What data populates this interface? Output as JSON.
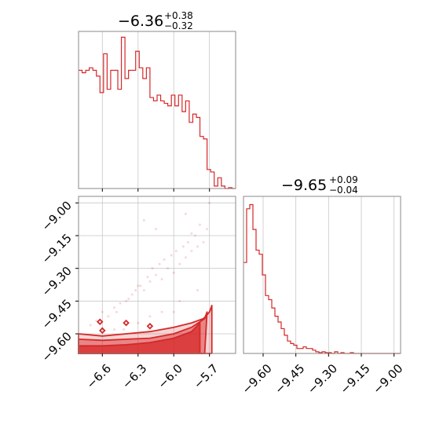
{
  "figure": {
    "accent_color": "#d62728",
    "grid_color": "#c8c8c8",
    "frame_color": "#8a8a8a"
  },
  "chart_data": [
    {
      "type": "histogram",
      "panel": "top-left marginal",
      "variable": "x",
      "title": "−6.36",
      "title_upper": "+0.38",
      "title_lower": "−0.32",
      "median": -6.36,
      "err_plus": 0.38,
      "err_minus": 0.32,
      "xlim": [
        -6.8,
        -5.48
      ],
      "x_ticks": [
        -6.6,
        -6.3,
        -6.0,
        -5.7
      ],
      "x_tick_labels": [],
      "grid": true,
      "bins": [
        [
          -6.8,
          -6.77
        ],
        [
          -6.77,
          -6.74
        ],
        [
          -6.74,
          -6.71
        ],
        [
          -6.71,
          -6.68
        ],
        [
          -6.68,
          -6.65
        ],
        [
          -6.65,
          -6.62
        ],
        [
          -6.62,
          -6.59
        ],
        [
          -6.59,
          -6.56
        ],
        [
          -6.56,
          -6.53
        ],
        [
          -6.53,
          -6.5
        ],
        [
          -6.5,
          -6.47
        ],
        [
          -6.47,
          -6.44
        ],
        [
          -6.44,
          -6.41
        ],
        [
          -6.41,
          -6.38
        ],
        [
          -6.38,
          -6.35
        ],
        [
          -6.35,
          -6.32
        ],
        [
          -6.32,
          -6.29
        ],
        [
          -6.29,
          -6.26
        ],
        [
          -6.26,
          -6.23
        ],
        [
          -6.23,
          -6.2
        ],
        [
          -6.2,
          -6.17
        ],
        [
          -6.17,
          -6.14
        ],
        [
          -6.14,
          -6.11
        ],
        [
          -6.11,
          -6.08
        ],
        [
          -6.08,
          -6.05
        ],
        [
          -6.05,
          -6.02
        ],
        [
          -6.02,
          -5.99
        ],
        [
          -5.99,
          -5.96
        ],
        [
          -5.96,
          -5.93
        ],
        [
          -5.93,
          -5.9
        ],
        [
          -5.9,
          -5.87
        ],
        [
          -5.87,
          -5.84
        ],
        [
          -5.84,
          -5.81
        ],
        [
          -5.81,
          -5.78
        ],
        [
          -5.78,
          -5.75
        ],
        [
          -5.75,
          -5.72
        ],
        [
          -5.72,
          -5.69
        ],
        [
          -5.69,
          -5.66
        ],
        [
          -5.66,
          -5.63
        ],
        [
          -5.63,
          -5.6
        ],
        [
          -5.6,
          -5.57
        ],
        [
          -5.57,
          -5.54
        ],
        [
          -5.54,
          -5.51
        ],
        [
          -5.51,
          -5.48
        ]
      ],
      "counts": [
        143,
        140,
        143,
        146,
        143,
        136,
        116,
        163,
        120,
        143,
        143,
        120,
        183,
        133,
        143,
        143,
        166,
        146,
        133,
        146,
        110,
        106,
        113,
        106,
        103,
        100,
        113,
        100,
        113,
        93,
        106,
        80,
        90,
        86,
        63,
        60,
        23,
        20,
        3,
        13,
        3,
        0,
        1,
        0
      ],
      "ylim": [
        0,
        190
      ]
    },
    {
      "type": "contour+scatter",
      "panel": "bottom-left joint",
      "x_variable": "x",
      "y_variable": "y",
      "xlim": [
        -6.8,
        -5.48
      ],
      "ylim": [
        -9.69,
        -8.97
      ],
      "x_ticks": [
        -6.6,
        -6.3,
        -6.0,
        -5.7
      ],
      "x_tick_labels": [
        "−6.6",
        "−6.3",
        "−6.0",
        "−5.7"
      ],
      "y_ticks": [
        -9.0,
        -9.15,
        -9.3,
        -9.45,
        -9.6
      ],
      "y_tick_labels": [
        "−9.00",
        "−9.15",
        "−9.30",
        "−9.45",
        "−9.60"
      ],
      "grid": true,
      "contour_levels": [
        {
          "x": [
            -6.8,
            -6.6,
            -6.4,
            -6.2,
            -6.0,
            -5.85,
            -5.78,
            -5.78,
            -6.0,
            -6.3,
            -6.6,
            -6.8
          ],
          "y": [
            -9.655,
            -9.655,
            -9.65,
            -9.64,
            -9.62,
            -9.59,
            -9.55,
            -9.69,
            -9.69,
            -9.69,
            -9.69,
            -9.69
          ]
        },
        {
          "x": [
            -6.8,
            -6.6,
            -6.4,
            -6.2,
            -6.0,
            -5.85,
            -5.74,
            -5.72,
            -5.74,
            -6.0,
            -6.3,
            -6.6,
            -6.8
          ],
          "y": [
            -9.625,
            -9.63,
            -9.625,
            -9.62,
            -9.6,
            -9.57,
            -9.53,
            -9.5,
            -9.69,
            -9.69,
            -9.69,
            -9.69,
            -9.69
          ]
        },
        {
          "x": [
            -6.8,
            -6.6,
            -6.4,
            -6.2,
            -6.0,
            -5.85,
            -5.75,
            -5.7,
            -5.68,
            -5.68,
            -5.72,
            -5.8,
            -6.0,
            -6.3,
            -6.6,
            -6.8
          ],
          "y": [
            -9.6,
            -9.61,
            -9.6,
            -9.59,
            -9.57,
            -9.55,
            -9.53,
            -9.5,
            -9.47,
            -9.69,
            -9.69,
            -9.69,
            -9.69,
            -9.69,
            -9.69,
            -9.69
          ]
        }
      ],
      "scatter": {
        "x": [
          -6.6,
          -6.5,
          -6.4,
          -6.35,
          -6.3,
          -6.25,
          -6.2,
          -6.15,
          -6.1,
          -6.05,
          -6.0,
          -5.95,
          -5.9,
          -5.85,
          -5.8,
          -5.75,
          -6.55,
          -6.45,
          -6.32,
          -6.22,
          -6.12,
          -6.02,
          -5.92,
          -5.82,
          -5.72,
          -6.7,
          -6.65,
          -6.48,
          -6.38,
          -6.28,
          -6.18,
          -6.08,
          -5.98,
          -5.88,
          -5.78,
          -6.42,
          -6.3,
          -6.1,
          -5.95,
          -5.8,
          -6.5,
          -6.2,
          -6.0,
          -5.7,
          -5.9,
          -6.25,
          -6.15,
          -5.85
        ],
        "y": [
          -9.5,
          -9.48,
          -9.45,
          -9.42,
          -9.38,
          -9.4,
          -9.36,
          -9.33,
          -9.35,
          -9.3,
          -9.32,
          -9.28,
          -9.25,
          -9.22,
          -9.2,
          -9.18,
          -9.52,
          -9.46,
          -9.4,
          -9.34,
          -9.28,
          -9.24,
          -9.2,
          -9.15,
          -9.12,
          -9.56,
          -9.54,
          -9.5,
          -9.44,
          -9.38,
          -9.3,
          -9.26,
          -9.22,
          -9.18,
          -9.1,
          -9.58,
          -9.55,
          -9.5,
          -9.45,
          -9.4,
          -9.58,
          -9.52,
          -9.5,
          -9.0,
          -9.05,
          -9.08,
          -9.12,
          -9.14
        ]
      },
      "isolated_contours": [
        {
          "x": -6.6,
          "y": -9.585
        },
        {
          "x": -6.4,
          "y": -9.55
        },
        {
          "x": -6.2,
          "y": -9.565
        },
        {
          "x": -6.62,
          "y": -9.545
        }
      ]
    },
    {
      "type": "histogram",
      "panel": "bottom-right marginal",
      "variable": "y",
      "title": "−9.65",
      "title_upper": "+0.09",
      "title_lower": "−0.04",
      "median": -9.65,
      "err_plus": 0.09,
      "err_minus": 0.04,
      "xlim": [
        -9.69,
        -8.97
      ],
      "x_ticks": [
        -9.6,
        -9.45,
        -9.3,
        -9.15,
        -9.0
      ],
      "x_tick_labels": [
        "−9.60",
        "−9.45",
        "−9.30",
        "−9.15",
        "−9.00"
      ],
      "grid": true,
      "bin_width": 0.0144,
      "counts": [
        110,
        175,
        180,
        150,
        125,
        120,
        95,
        70,
        65,
        55,
        45,
        38,
        30,
        22,
        15,
        12,
        10,
        6,
        6,
        8,
        6,
        6,
        4,
        2,
        1,
        2,
        1,
        1,
        0,
        2,
        0,
        1,
        0,
        0,
        1,
        0,
        0,
        0,
        0,
        0,
        0,
        0,
        0,
        0,
        0,
        0,
        0,
        0,
        0,
        0
      ],
      "ylim": [
        0,
        190
      ]
    }
  ]
}
